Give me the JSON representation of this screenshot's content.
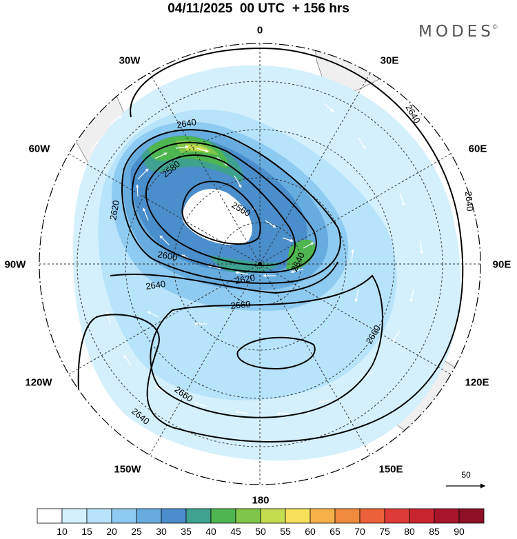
{
  "title": "04/11/2025  00 UTC  + 156 hrs",
  "brand": {
    "text": "MODES",
    "mark": "©"
  },
  "longitude_labels": [
    {
      "id": "0",
      "text": "0"
    },
    {
      "id": "30E",
      "text": "30E"
    },
    {
      "id": "60E",
      "text": "60E"
    },
    {
      "id": "90E",
      "text": "90E"
    },
    {
      "id": "120E",
      "text": "120E"
    },
    {
      "id": "150E",
      "text": "150E"
    },
    {
      "id": "180",
      "text": "180"
    },
    {
      "id": "150W",
      "text": "150W"
    },
    {
      "id": "120W",
      "text": "120W"
    },
    {
      "id": "90W",
      "text": "90W"
    },
    {
      "id": "60W",
      "text": "60W"
    },
    {
      "id": "30W",
      "text": "30W"
    }
  ],
  "contour_labels": [
    "2560",
    "2580",
    "2600",
    "2620",
    "2620",
    "2640",
    "2640",
    "2640",
    "2640",
    "2640",
    "2660",
    "2660",
    "2660"
  ],
  "vector_scale": {
    "value": "50"
  },
  "colorbar": {
    "ticks": [
      "10",
      "15",
      "20",
      "25",
      "30",
      "35",
      "40",
      "45",
      "50",
      "55",
      "60",
      "65",
      "70",
      "75",
      "80",
      "85",
      "90"
    ],
    "colors": [
      "#ffffff",
      "#d4f0fc",
      "#b7e3fb",
      "#8ecbf2",
      "#67acdf",
      "#4a8ecb",
      "#3fa18f",
      "#4db650",
      "#80c64a",
      "#c4dd4f",
      "#f7e05a",
      "#f5b147",
      "#f08a3d",
      "#eb613a",
      "#dd3b37",
      "#c8252f",
      "#a8152a",
      "#8c1026"
    ]
  }
}
